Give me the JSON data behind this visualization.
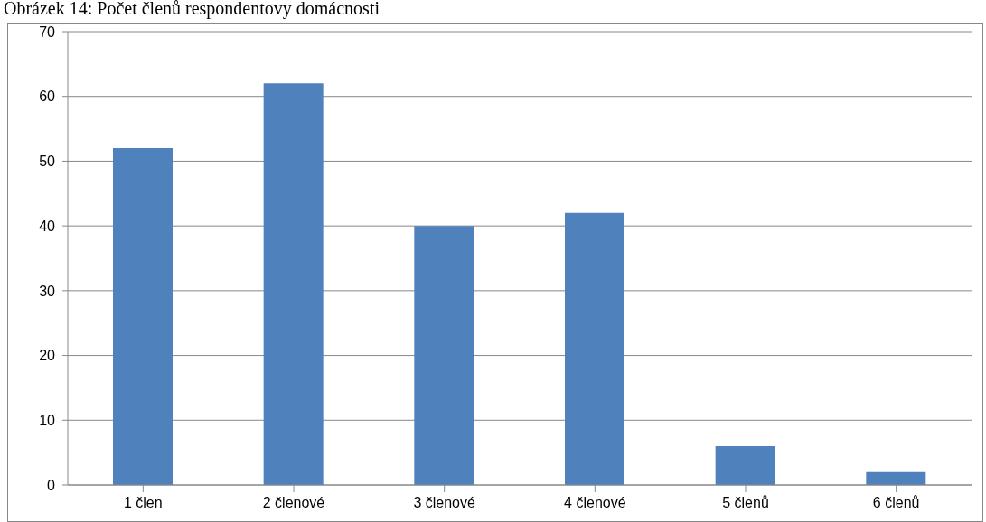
{
  "chart_data": {
    "type": "bar",
    "title": "Obrázek 14: Počet členů respondentovy domácnosti",
    "categories": [
      "1 člen",
      "2 členové",
      "3 členové",
      "4 členové",
      "5 členů",
      "6 členů"
    ],
    "values": [
      52,
      62,
      40,
      42,
      6,
      2
    ],
    "color": "#4f81bd",
    "ylim": [
      0,
      70
    ],
    "yticks": [
      0,
      10,
      20,
      30,
      40,
      50,
      60,
      70
    ],
    "grid": "y"
  }
}
